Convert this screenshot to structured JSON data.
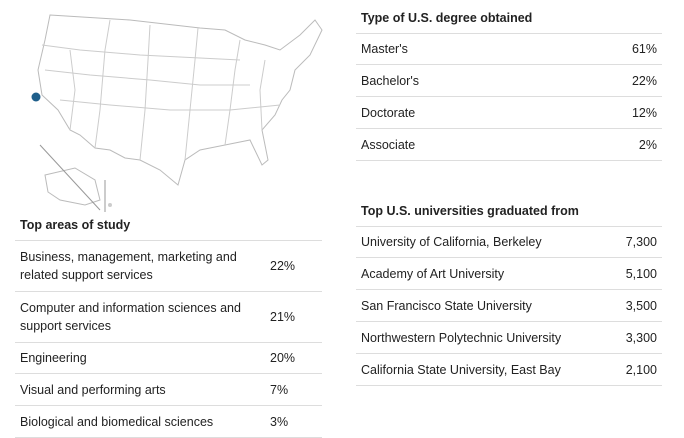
{
  "study_table": {
    "title": "Top areas of study",
    "rows": [
      [
        "Business, management, marketing and related support services",
        "22%"
      ],
      [
        "Computer and information sciences and support services",
        "21%"
      ],
      [
        "Engineering",
        "20%"
      ],
      [
        "Visual and performing arts",
        "7%"
      ],
      [
        "Biological and biomedical sciences",
        "3%"
      ]
    ]
  },
  "degree_table": {
    "title": "Type of U.S. degree obtained",
    "rows": [
      [
        "Master's",
        "61%"
      ],
      [
        "Bachelor's",
        "22%"
      ],
      [
        "Doctorate",
        "12%"
      ],
      [
        "Associate",
        "2%"
      ]
    ]
  },
  "university_table": {
    "title": "Top U.S. universities graduated from",
    "rows": [
      [
        "University of California, Berkeley",
        "7,300"
      ],
      [
        "Academy of Art University",
        "5,100"
      ],
      [
        "San Francisco State University",
        "3,500"
      ],
      [
        "Northwestern Polytechnic University",
        "3,300"
      ],
      [
        "California State University, East Bay",
        "2,100"
      ]
    ]
  }
}
